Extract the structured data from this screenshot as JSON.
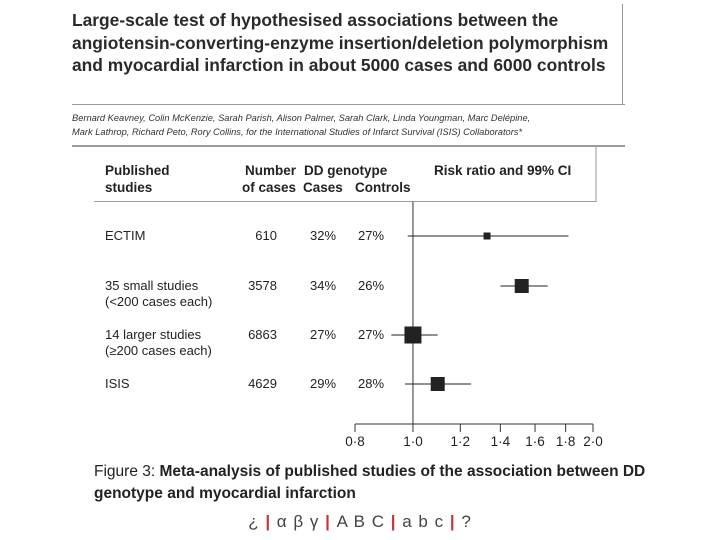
{
  "paper": {
    "title": "Large-scale test of hypothesised associations between the\nangiotensin-converting-enzyme insertion/deletion polymorphism\nand myocardial infarction in about 5000 cases and 6000 controls",
    "authors": "Bernard Keavney, Colin McKenzie, Sarah Parish, Alison Palmer, Sarah Clark, Linda Youngman, Marc Delépine,\nMark Lathrop, Richard Peto, Rory Collins, for the International Studies of Infarct Survival (ISIS) Collaborators*"
  },
  "table": {
    "headers": {
      "studies": "Published\nstudies",
      "cases": "Number\nof cases",
      "dd_genotype": "DD genotype",
      "dd_cases": "Cases",
      "dd_controls": "Controls",
      "risk": "Risk ratio and 99% CI"
    }
  },
  "chart_data": {
    "type": "forest",
    "title": "Risk ratio and 99% CI",
    "xscale": "log",
    "xlim": [
      0.8,
      2.0
    ],
    "reference_line": 1.0,
    "ticks": [
      0.8,
      1.0,
      1.2,
      1.4,
      1.6,
      1.8,
      2.0
    ],
    "tick_labels": [
      "0·8",
      "1·0",
      "1·2",
      "1·4",
      "1·6",
      "1·8",
      "2·0"
    ],
    "studies": [
      {
        "label": "ECTIM",
        "sublabel": "",
        "cases": "610",
        "dd_cases": "32%",
        "dd_controls": "27%",
        "rr": 1.33,
        "ci_low": 0.98,
        "ci_high": 1.82
      },
      {
        "label": "35 small studies",
        "sublabel": "(<200 cases each)",
        "cases": "3578",
        "dd_cases": "34%",
        "dd_controls": "26%",
        "rr": 1.52,
        "ci_low": 1.4,
        "ci_high": 1.68
      },
      {
        "label": "14 larger studies",
        "sublabel": "(≥200 cases each)",
        "cases": "6863",
        "dd_cases": "27%",
        "dd_controls": "27%",
        "rr": 1.0,
        "ci_low": 0.92,
        "ci_high": 1.1
      },
      {
        "label": "ISIS",
        "sublabel": "",
        "cases": "4629",
        "dd_cases": "29%",
        "dd_controls": "28%",
        "rr": 1.1,
        "ci_low": 0.97,
        "ci_high": 1.25
      }
    ],
    "marker_weight_rank": [
      1,
      3,
      4,
      4
    ]
  },
  "caption": {
    "label": "Figure 3:",
    "text": "Meta-analysis of published studies of the association between DD genotype and myocardial infarction"
  },
  "symbol_bar": {
    "groups": [
      "¿",
      "α β γ",
      "A B C",
      "a b c",
      "?"
    ]
  }
}
